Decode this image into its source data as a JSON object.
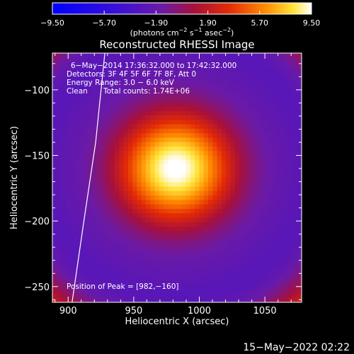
{
  "chart_data": {
    "type": "heatmap",
    "title": "Reconstructed RHESSI Image",
    "xlabel": "Heliocentric X (arcsec)",
    "ylabel": "Heliocentric Y (arcsec)",
    "xlim": [
      888,
      1078
    ],
    "ylim": [
      -262,
      -72
    ],
    "xticks": [
      900,
      950,
      1000,
      1050
    ],
    "xtick_labels": [
      "900",
      "950",
      "1000",
      "1050"
    ],
    "yticks": [
      -100,
      -150,
      -200,
      -250
    ],
    "ytick_labels": [
      "−100",
      "−150",
      "−200",
      "−250"
    ],
    "grid": false,
    "colorbar": {
      "min": -9.5,
      "max": 9.5,
      "ticks": [
        -9.5,
        -5.7,
        -1.9,
        1.9,
        5.7,
        9.5
      ],
      "tick_labels": [
        "−9.50",
        "−5.70",
        "−1.90",
        "1.90",
        "5.70",
        "9.50"
      ],
      "colormap": "blue-purple-red-yellow-white",
      "label_parts": [
        "(photons cm",
        "−2",
        " s",
        "−1",
        " asec",
        "−2",
        ")"
      ]
    },
    "peak": [
      982,
      -160
    ],
    "intensity_model": {
      "center": [
        982,
        -160
      ],
      "peak_value": 9.5,
      "core_sigma": 28,
      "ring_radius": 110,
      "ring_width": 18,
      "ring_value": -2.6,
      "outer_value": 4.6
    },
    "limb": {
      "points": [
        [
          928,
          -72
        ],
        [
          921,
          -140
        ],
        [
          912,
          -200
        ],
        [
          903,
          -262
        ]
      ]
    },
    "annotations": {
      "time_range": "6−May−2014 17:36:32.000 to 17:42:32.000",
      "detectors": "Detectors: 3F 4F 5F 6F 7F 8F, Att 0",
      "energy_range": "Energy Range: 3.0 − 6.0 keV",
      "clean": "Clean",
      "total_counts": "Total counts: 1.74E+06",
      "peak_position": "Position of Peak = [982,−160]"
    }
  },
  "footer": {
    "timestamp": "15−May−2022 02:22"
  }
}
